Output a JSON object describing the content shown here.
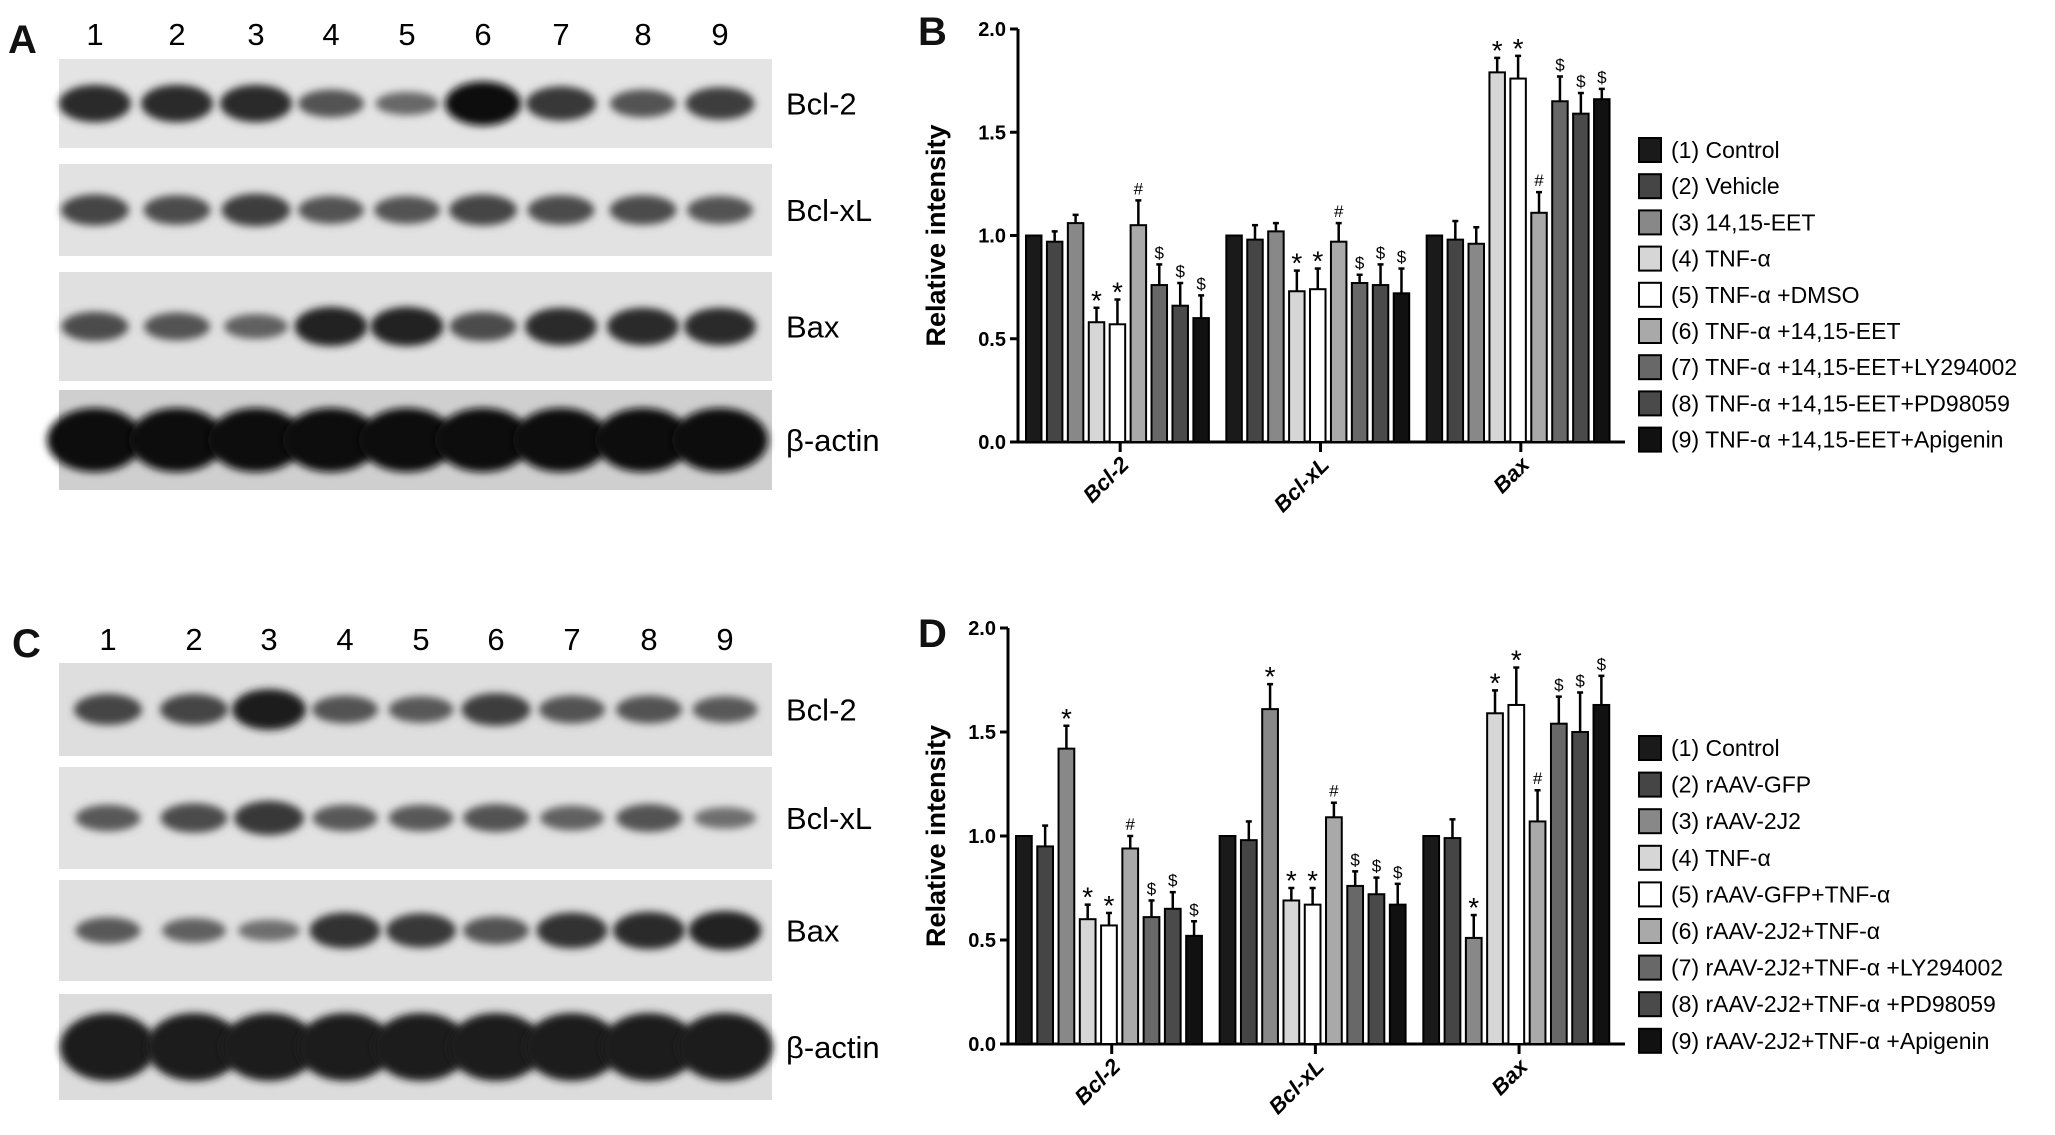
{
  "panels": {
    "A": {
      "letter": "A",
      "lanes": [
        "1",
        "2",
        "3",
        "4",
        "5",
        "6",
        "7",
        "8",
        "9"
      ],
      "blots": [
        {
          "label": "Bcl-2",
          "band_intensity": [
            0.8,
            0.8,
            0.8,
            0.5,
            0.35,
            1,
            0.7,
            0.5,
            0.65
          ]
        },
        {
          "label": "Bcl-xL",
          "band_intensity": [
            0.6,
            0.55,
            0.65,
            0.5,
            0.5,
            0.6,
            0.55,
            0.55,
            0.5
          ]
        },
        {
          "label": "Bax",
          "band_intensity": [
            0.55,
            0.5,
            0.4,
            0.85,
            0.85,
            0.55,
            0.8,
            0.8,
            0.8
          ]
        },
        {
          "label": "β-actin",
          "band_intensity": [
            1,
            1,
            1,
            1,
            1,
            1,
            1,
            1,
            1
          ]
        }
      ]
    },
    "C": {
      "letter": "C",
      "lanes": [
        "1",
        "2",
        "3",
        "4",
        "5",
        "6",
        "7",
        "8",
        "9"
      ],
      "blots": [
        {
          "label": "Bcl-2",
          "band_intensity": [
            0.6,
            0.6,
            0.9,
            0.5,
            0.45,
            0.65,
            0.5,
            0.5,
            0.45
          ]
        },
        {
          "label": "Bcl-xL",
          "band_intensity": [
            0.45,
            0.55,
            0.7,
            0.45,
            0.45,
            0.5,
            0.4,
            0.5,
            0.3
          ]
        },
        {
          "label": "Bax",
          "band_intensity": [
            0.45,
            0.4,
            0.3,
            0.75,
            0.7,
            0.5,
            0.75,
            0.8,
            0.85
          ]
        },
        {
          "label": "β-actin",
          "band_intensity": [
            0.9,
            0.9,
            0.9,
            0.9,
            0.9,
            0.9,
            0.9,
            0.9,
            0.9
          ]
        }
      ]
    }
  },
  "bar_colors": [
    "#1a1a1a",
    "#454545",
    "#888888",
    "#d6d6d6",
    "#ffffff",
    "#a9a9a9",
    "#686868",
    "#4a4a4a",
    "#111111"
  ],
  "chart_data": [
    {
      "panel": "B",
      "type": "bar",
      "ylabel": "Relative intensity",
      "ylim": [
        0,
        2.0
      ],
      "yticks": [
        "0.0",
        "0.5",
        "1.0",
        "1.5",
        "2.0"
      ],
      "grid": false,
      "legend_position": "right",
      "categories": [
        "Bcl-2",
        "Bcl-xL",
        "Bax"
      ],
      "series": [
        {
          "name": "(1) Control",
          "values": [
            1.0,
            1.0,
            1.0
          ],
          "errors": [
            0,
            0,
            0
          ],
          "annotations": [
            "",
            "",
            ""
          ]
        },
        {
          "name": "(2) Vehicle",
          "values": [
            0.97,
            0.98,
            0.98
          ],
          "errors": [
            0.05,
            0.07,
            0.09
          ],
          "annotations": [
            "",
            "",
            ""
          ]
        },
        {
          "name": "(3) 14,15-EET",
          "values": [
            1.06,
            1.02,
            0.96
          ],
          "errors": [
            0.04,
            0.04,
            0.08
          ],
          "annotations": [
            "",
            "",
            ""
          ]
        },
        {
          "name": "(4) TNF-α",
          "values": [
            0.58,
            0.73,
            1.79
          ],
          "errors": [
            0.07,
            0.1,
            0.07
          ],
          "annotations": [
            "*",
            "*",
            "*"
          ]
        },
        {
          "name": "(5) TNF-α +DMSO",
          "values": [
            0.57,
            0.74,
            1.76
          ],
          "errors": [
            0.12,
            0.1,
            0.11
          ],
          "annotations": [
            "*",
            "*",
            "*"
          ]
        },
        {
          "name": "(6) TNF-α +14,15-EET",
          "values": [
            1.05,
            0.97,
            1.11
          ],
          "errors": [
            0.12,
            0.09,
            0.1
          ],
          "annotations": [
            "#",
            "#",
            "#"
          ]
        },
        {
          "name": "(7) TNF-α +14,15-EET+LY294002",
          "values": [
            0.76,
            0.77,
            1.65
          ],
          "errors": [
            0.1,
            0.04,
            0.12
          ],
          "annotations": [
            "$",
            "$",
            "$"
          ]
        },
        {
          "name": "(8) TNF-α +14,15-EET+PD98059",
          "values": [
            0.66,
            0.76,
            1.59
          ],
          "errors": [
            0.11,
            0.1,
            0.1
          ],
          "annotations": [
            "$",
            "$",
            "$"
          ]
        },
        {
          "name": "(9) TNF-α +14,15-EET+Apigenin",
          "values": [
            0.6,
            0.72,
            1.66
          ],
          "errors": [
            0.11,
            0.12,
            0.05
          ],
          "annotations": [
            "$",
            "$",
            "$"
          ]
        }
      ]
    },
    {
      "panel": "D",
      "type": "bar",
      "ylabel": "Relative intensity",
      "ylim": [
        0,
        2.0
      ],
      "yticks": [
        "0.0",
        "0.5",
        "1.0",
        "1.5",
        "2.0"
      ],
      "grid": false,
      "legend_position": "right",
      "categories": [
        "Bcl-2",
        "Bcl-xL",
        "Bax"
      ],
      "series": [
        {
          "name": "(1) Control",
          "values": [
            1.0,
            1.0,
            1.0
          ],
          "errors": [
            0,
            0,
            0
          ],
          "annotations": [
            "",
            "",
            ""
          ]
        },
        {
          "name": "(2) rAAV-GFP",
          "values": [
            0.95,
            0.98,
            0.99
          ],
          "errors": [
            0.1,
            0.09,
            0.09
          ],
          "annotations": [
            "",
            "",
            ""
          ]
        },
        {
          "name": "(3) rAAV-2J2",
          "values": [
            1.42,
            1.61,
            0.51
          ],
          "errors": [
            0.11,
            0.12,
            0.11
          ],
          "annotations": [
            "*",
            "*",
            "*"
          ]
        },
        {
          "name": "(4) TNF-α",
          "values": [
            0.6,
            0.69,
            1.59
          ],
          "errors": [
            0.07,
            0.06,
            0.11
          ],
          "annotations": [
            "*",
            "*",
            "*"
          ]
        },
        {
          "name": "(5) rAAV-GFP+TNF-α",
          "values": [
            0.57,
            0.67,
            1.63
          ],
          "errors": [
            0.06,
            0.08,
            0.18
          ],
          "annotations": [
            "*",
            "*",
            "*"
          ]
        },
        {
          "name": "(6) rAAV-2J2+TNF-α",
          "values": [
            0.94,
            1.09,
            1.07
          ],
          "errors": [
            0.06,
            0.07,
            0.15
          ],
          "annotations": [
            "#",
            "#",
            "#"
          ]
        },
        {
          "name": "(7) rAAV-2J2+TNF-α +LY294002",
          "values": [
            0.61,
            0.76,
            1.54
          ],
          "errors": [
            0.08,
            0.07,
            0.13
          ],
          "annotations": [
            "$",
            "$",
            "$"
          ]
        },
        {
          "name": "(8) rAAV-2J2+TNF-α +PD98059",
          "values": [
            0.65,
            0.72,
            1.5
          ],
          "errors": [
            0.08,
            0.08,
            0.19
          ],
          "annotations": [
            "$",
            "$",
            "$"
          ]
        },
        {
          "name": "(9) rAAV-2J2+TNF-α +Apigenin",
          "values": [
            0.52,
            0.67,
            1.63
          ],
          "errors": [
            0.07,
            0.1,
            0.14
          ],
          "annotations": [
            "$",
            "$",
            "$"
          ]
        }
      ]
    }
  ],
  "chart_letters": [
    "B",
    "D"
  ]
}
